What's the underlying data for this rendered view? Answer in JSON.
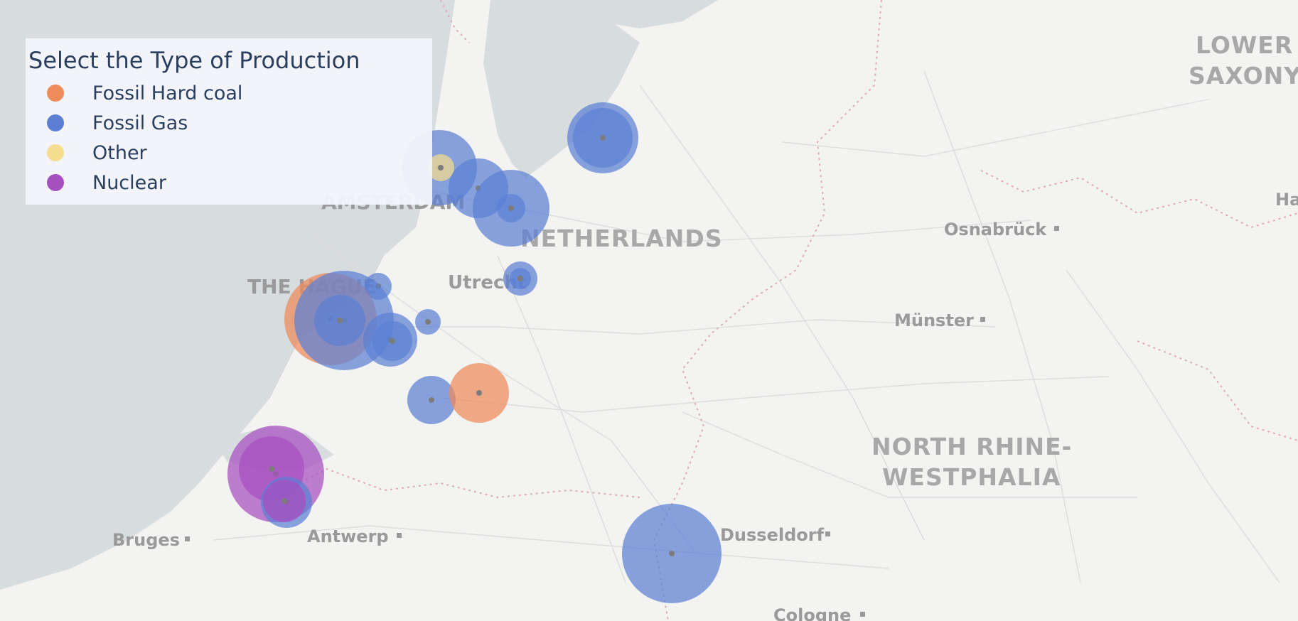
{
  "legend": {
    "title": "Select the Type of Production",
    "items": [
      {
        "label": "Fossil Hard coal",
        "color": "#ef8a5a"
      },
      {
        "label": "Fossil Gas",
        "color": "#5b7fd4"
      },
      {
        "label": "Other",
        "color": "#f4dd8f"
      },
      {
        "label": "Nuclear",
        "color": "#a64fbf"
      }
    ]
  },
  "map_labels": {
    "countries": [
      "NETHERLANDS",
      "NORTH RHINE-",
      "WESTPHALIA",
      "LOWER",
      "SAXONY"
    ],
    "cities": [
      "THE HAGUE",
      "Utrecht",
      "Osnabrück",
      "Münster",
      "Bruges",
      "Antwerp",
      "Dusseldorf",
      "Cologne",
      "AMSTERDAM",
      "Ha"
    ]
  },
  "colors": {
    "water": "#d7dcdf",
    "land": "#f3f3f1",
    "border": "#e2a8b4",
    "road": "#dcdcdc",
    "center_dot": "#7c7c7c"
  },
  "chart_data": {
    "type": "scatter",
    "series": [
      {
        "name": "Fossil Hard coal",
        "color": "#ef8a5a"
      },
      {
        "name": "Fossil Gas",
        "color": "#5b7fd4"
      },
      {
        "name": "Other",
        "color": "#f4dd8f"
      },
      {
        "name": "Nuclear",
        "color": "#a64fbf"
      }
    ]
  }
}
